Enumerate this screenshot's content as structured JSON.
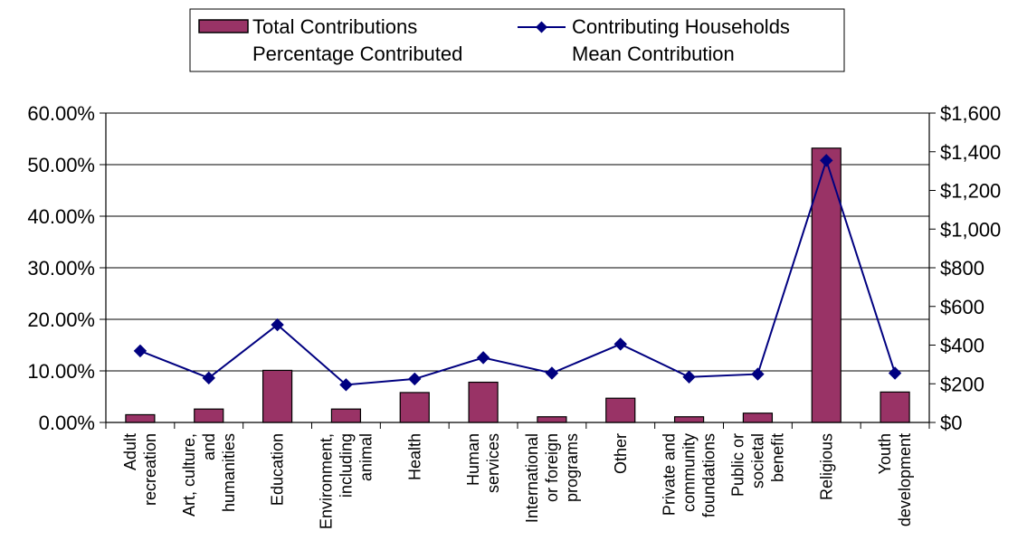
{
  "chart_data": {
    "type": "bar+line",
    "categories": [
      [
        "Adult",
        "recreation"
      ],
      [
        "Art, culture,",
        "and",
        "humanities"
      ],
      [
        "Education"
      ],
      [
        "Environment,",
        "including",
        "animal"
      ],
      [
        "Health"
      ],
      [
        "Human",
        "services"
      ],
      [
        "International",
        "or foreign",
        "programs"
      ],
      [
        "Other"
      ],
      [
        "Private and",
        "community",
        "foundations"
      ],
      [
        "Public or",
        "societal",
        "benefit"
      ],
      [
        "Religious"
      ],
      [
        "Youth",
        "development"
      ]
    ],
    "series": [
      {
        "name": "Total Contributions Percentage Contributed",
        "type": "bar",
        "axis": "left",
        "color": "#993366",
        "values": [
          1.5,
          2.6,
          10.1,
          2.6,
          5.8,
          7.8,
          1.1,
          4.7,
          1.1,
          1.8,
          53.2,
          5.9
        ]
      },
      {
        "name": "Contributing Households Mean Contribution",
        "type": "line",
        "axis": "right",
        "color": "#000080",
        "values": [
          370,
          230,
          505,
          195,
          225,
          335,
          255,
          405,
          235,
          250,
          1355,
          255
        ]
      }
    ],
    "legend": {
      "entries": [
        {
          "lines": [
            "Total Contributions",
            "Percentage Contributed"
          ]
        },
        {
          "lines": [
            "Contributing Households",
            "Mean Contribution"
          ]
        }
      ],
      "position": "top-center"
    },
    "y_left": {
      "ylim": [
        0,
        60
      ],
      "ticks": [
        0,
        10,
        20,
        30,
        40,
        50,
        60
      ],
      "tick_labels": [
        "0.00%",
        "10.00%",
        "20.00%",
        "30.00%",
        "40.00%",
        "50.00%",
        "60.00%"
      ]
    },
    "y_right": {
      "ylim": [
        0,
        1600
      ],
      "ticks": [
        0,
        200,
        400,
        600,
        800,
        1000,
        1200,
        1400,
        1600
      ],
      "tick_labels": [
        "$0",
        "$200",
        "$400",
        "$600",
        "$800",
        "$1,000",
        "$1,200",
        "$1,400",
        "$1,600"
      ]
    },
    "grid": "horizontal"
  }
}
